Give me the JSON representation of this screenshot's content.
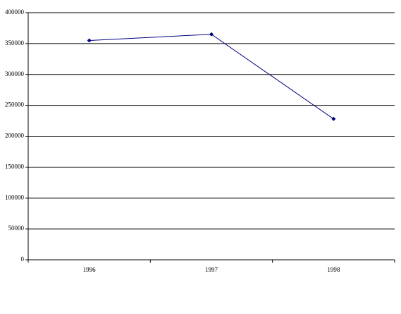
{
  "chart_data": {
    "type": "line",
    "categories": [
      "1996",
      "1997",
      "1998"
    ],
    "series": [
      {
        "color": "#000080",
        "values": [
          355000,
          365000,
          228000
        ]
      }
    ],
    "ylim": [
      0,
      400000
    ],
    "yticks": [
      0,
      50000,
      100000,
      150000,
      200000,
      250000,
      300000,
      350000,
      400000
    ],
    "grid": true
  }
}
